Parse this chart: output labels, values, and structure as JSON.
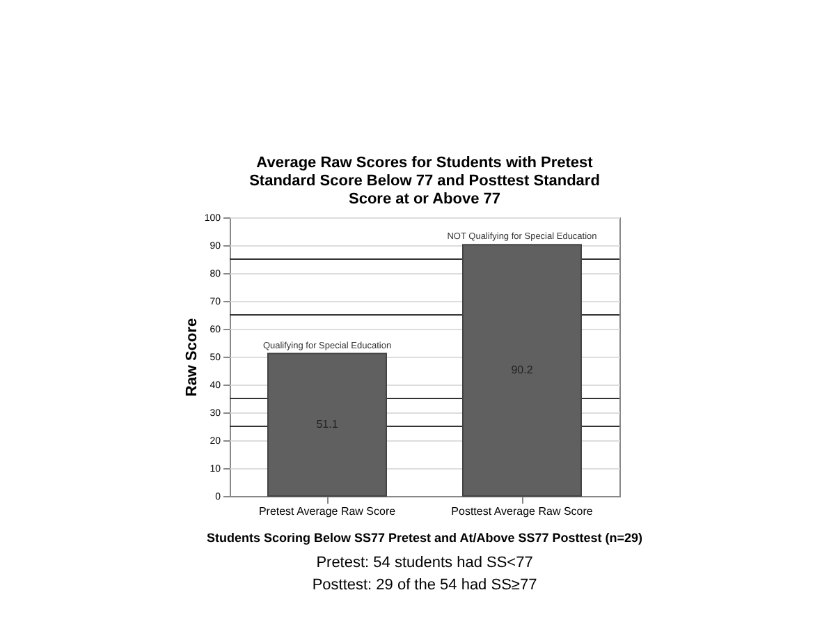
{
  "chart_data": {
    "type": "bar",
    "title": "Average Raw Scores for Students with Pretest Standard Score Below 77 and Posttest Standard Score at or Above 77",
    "ylabel": "Raw Score",
    "categories": [
      "Pretest Average Raw Score",
      "Posttest Average Raw Score"
    ],
    "values": [
      51.1,
      90.2
    ],
    "color": "#606060",
    "data_labels": true,
    "ylim": [
      0,
      100
    ],
    "yticks": [
      0,
      10,
      20,
      30,
      40,
      50,
      60,
      70,
      80,
      90,
      100
    ],
    "grid": "y",
    "ref_lines": [
      {
        "axis": "y",
        "value": 25,
        "color": "#333333"
      },
      {
        "axis": "y",
        "value": 35,
        "color": "#333333"
      },
      {
        "axis": "y",
        "value": 65,
        "color": "#333333"
      },
      {
        "axis": "y",
        "value": 85,
        "color": "#333333"
      }
    ],
    "annotations": [
      {
        "text": "Qualifying for Special Education",
        "x": "Pretest Average Raw Score",
        "y": 51.1
      },
      {
        "text": "NOT Qualifying for Special Education",
        "x": "Posttest Average Raw Score",
        "y": 90.2
      },
      "Students Scoring Below SS77 Pretest and At/Above SS77 Posttest (n=29)",
      "Pretest: 54 students had SS<77",
      "Posttest: 29 of the 54 had SS≥77"
    ]
  }
}
